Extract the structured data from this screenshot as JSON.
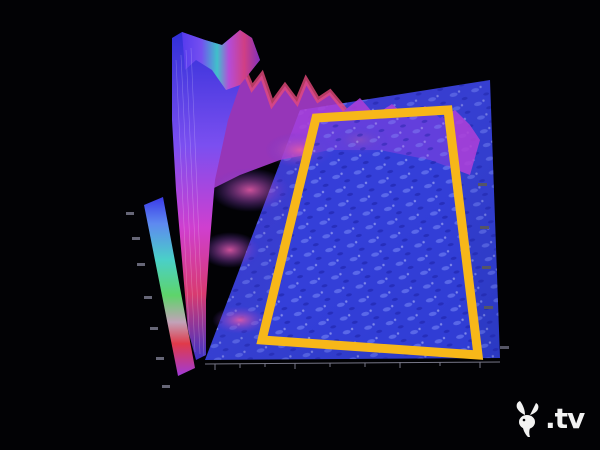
{
  "colors": {
    "background": "#020205",
    "highlight_frame": "#f7b719",
    "surface_blue": "#3a3ae0",
    "surface_magenta": "#c23fd8",
    "surface_red": "#d23050",
    "surface_green": "#4ec86a",
    "watermark": "#f2f2f2"
  },
  "icons": {
    "watermark_logo": "bunny-logo-icon"
  },
  "watermark": {
    "text": ".tv"
  }
}
